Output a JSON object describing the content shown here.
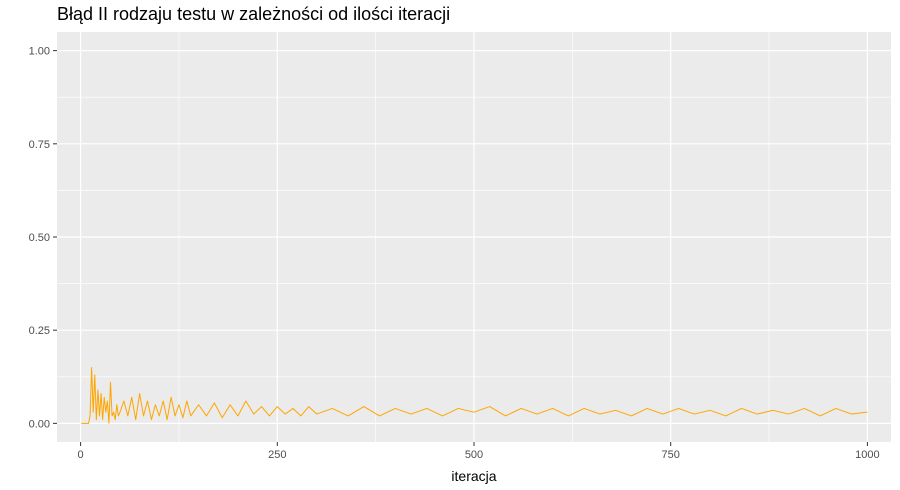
{
  "chart_data": {
    "type": "line",
    "title": "Błąd II rodzaju testu w zależności od ilości iteracji",
    "xlabel": "iteracja",
    "ylabel": "",
    "xlim": [
      -30,
      1030
    ],
    "ylim": [
      -0.05,
      1.05
    ],
    "x_ticks": [
      0,
      250,
      500,
      750,
      1000
    ],
    "x_tick_labels": [
      "0",
      "250",
      "500",
      "750",
      "1000"
    ],
    "y_ticks": [
      0,
      0.25,
      0.5,
      0.75,
      1.0
    ],
    "y_tick_labels": [
      "0.00",
      "0.25",
      "0.50",
      "0.75",
      "1.00"
    ],
    "grid": true,
    "legend": "none",
    "panel_color": "#ebebeb",
    "grid_color": "#ffffff",
    "series": [
      {
        "color": "#ffa500",
        "x": [
          1,
          5,
          10,
          12,
          14,
          16,
          18,
          20,
          22,
          24,
          26,
          28,
          30,
          32,
          34,
          36,
          38,
          40,
          42,
          44,
          46,
          48,
          50,
          55,
          60,
          65,
          70,
          75,
          80,
          85,
          90,
          95,
          100,
          105,
          110,
          115,
          120,
          125,
          130,
          135,
          140,
          150,
          160,
          170,
          180,
          190,
          200,
          210,
          220,
          230,
          240,
          250,
          260,
          270,
          280,
          290,
          300,
          320,
          340,
          360,
          380,
          400,
          420,
          440,
          460,
          480,
          500,
          520,
          540,
          560,
          580,
          600,
          620,
          640,
          660,
          680,
          700,
          720,
          740,
          760,
          780,
          800,
          820,
          840,
          860,
          880,
          900,
          920,
          940,
          960,
          980,
          1000
        ],
        "values": [
          0,
          0,
          0,
          0.02,
          0.15,
          0.03,
          0.13,
          0.01,
          0.09,
          0.02,
          0.08,
          0.01,
          0.07,
          0.03,
          0.06,
          0.0,
          0.11,
          0.02,
          0.03,
          0.01,
          0.05,
          0.02,
          0.03,
          0.06,
          0.02,
          0.07,
          0.01,
          0.08,
          0.02,
          0.06,
          0.01,
          0.05,
          0.02,
          0.06,
          0.01,
          0.07,
          0.02,
          0.05,
          0.015,
          0.06,
          0.02,
          0.05,
          0.02,
          0.055,
          0.015,
          0.05,
          0.02,
          0.06,
          0.025,
          0.045,
          0.02,
          0.045,
          0.025,
          0.04,
          0.02,
          0.045,
          0.025,
          0.04,
          0.02,
          0.045,
          0.02,
          0.04,
          0.025,
          0.04,
          0.02,
          0.04,
          0.03,
          0.045,
          0.02,
          0.04,
          0.025,
          0.04,
          0.02,
          0.04,
          0.025,
          0.035,
          0.02,
          0.04,
          0.025,
          0.04,
          0.025,
          0.035,
          0.02,
          0.04,
          0.025,
          0.035,
          0.025,
          0.04,
          0.02,
          0.04,
          0.025,
          0.03
        ]
      }
    ]
  }
}
